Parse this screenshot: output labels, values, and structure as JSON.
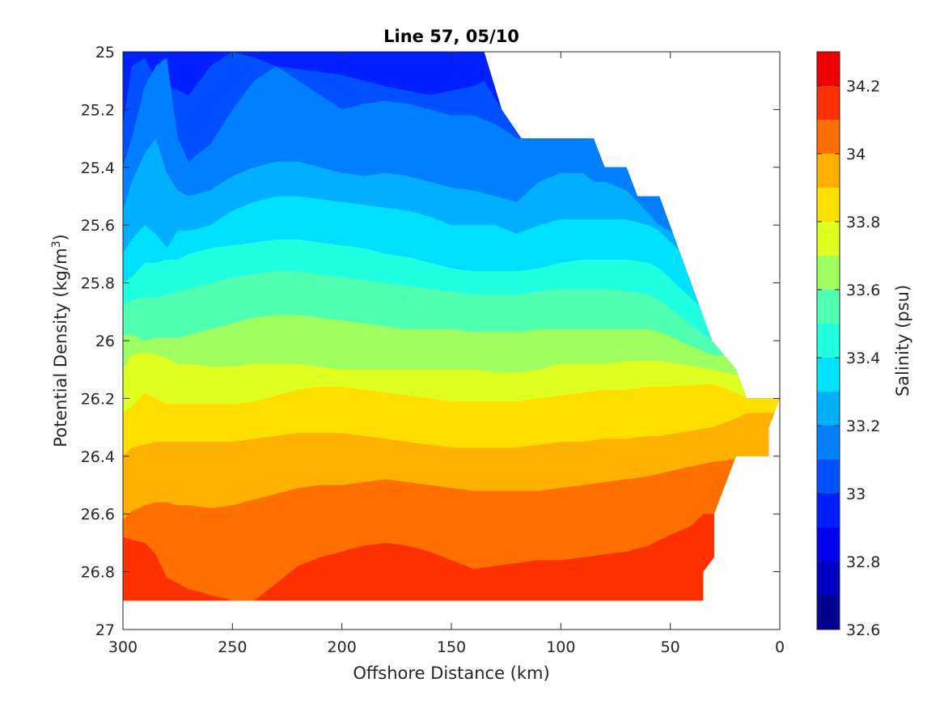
{
  "chart_data": {
    "type": "contourf",
    "title": "Line 57, 05/10",
    "xlabel": "Offshore Distance (km)",
    "ylabel_main": "Potential Density (kg/m",
    "ylabel_sup": "3",
    "ylabel_close": ")",
    "colorbar_label": "Salinity (psu)",
    "xlim": [
      300,
      0
    ],
    "ylim": [
      25,
      27
    ],
    "xticks": [
      "300",
      "250",
      "200",
      "150",
      "100",
      "50",
      "0"
    ],
    "yticks": [
      "25",
      "25.2",
      "25.4",
      "25.6",
      "25.8",
      "26",
      "26.2",
      "26.4",
      "26.6",
      "26.8",
      "27"
    ],
    "colorbar_range": [
      32.6,
      34.3
    ],
    "colorbar_ticks": [
      "32.6",
      "32.8",
      "33",
      "33.2",
      "33.4",
      "33.6",
      "33.8",
      "34",
      "34.2"
    ],
    "level_edges": [
      32.6,
      32.7,
      32.8,
      32.9,
      33.0,
      33.1,
      33.2,
      33.3,
      33.4,
      33.5,
      33.6,
      33.7,
      33.8,
      33.9,
      34.0,
      34.1,
      34.2,
      34.3
    ],
    "level_colors": [
      "#00008f",
      "#0000c0",
      "#0000ef",
      "#0020ff",
      "#0050ff",
      "#0080ff",
      "#00b0ff",
      "#00e0ff",
      "#20ffdf",
      "#50ffaf",
      "#a0ff60",
      "#dfff20",
      "#ffdf00",
      "#ffb000",
      "#ff7000",
      "#ff3000",
      "#ef0000",
      "#bf0000"
    ],
    "data_region": {
      "x": [
        300,
        300,
        135,
        127,
        118,
        85,
        80,
        70,
        65,
        55,
        31,
        20,
        15,
        0,
        5,
        5,
        20,
        30,
        30,
        35,
        35,
        300
      ],
      "y": [
        26.9,
        25,
        25,
        25.2,
        25.3,
        25.3,
        25.4,
        25.4,
        25.5,
        25.5,
        26.0,
        26.1,
        26.2,
        26.2,
        26.3,
        26.4,
        26.4,
        26.6,
        26.75,
        26.8,
        26.9,
        26.9
      ]
    },
    "bands": [
      {
        "salinity_low": 32.9,
        "x": [
          300,
          135,
          127,
          118,
          85,
          80,
          70,
          65,
          55,
          31,
          20,
          15,
          0
        ],
        "y_top": [
          25,
          25,
          25,
          25,
          25,
          25,
          25,
          25,
          25,
          25,
          25,
          25,
          25
        ]
      },
      {
        "salinity_low": 33.0,
        "x": [
          300,
          296,
          290,
          285,
          270,
          260,
          250,
          240,
          230,
          220,
          200,
          180,
          160,
          140,
          135,
          127,
          118,
          100,
          85,
          80,
          70,
          65,
          55,
          31,
          20,
          15,
          0
        ],
        "y_top": [
          25.25,
          25.05,
          25.02,
          25.1,
          25.15,
          25.05,
          25.0,
          25.02,
          25.05,
          25.06,
          25.08,
          25.12,
          25.15,
          25.12,
          25.1,
          25.2,
          25.3,
          25.3,
          25.3,
          25.4,
          25.4,
          25.5,
          25.5,
          25.5,
          25.5,
          25.5,
          25.5
        ]
      },
      {
        "salinity_low": 33.1,
        "x": [
          300,
          296,
          290,
          285,
          280,
          275,
          270,
          260,
          250,
          240,
          230,
          220,
          210,
          200,
          190,
          180,
          170,
          160,
          150,
          140,
          130,
          120,
          110,
          100,
          90,
          85,
          80,
          70,
          65,
          55,
          31,
          20,
          15,
          0
        ],
        "y_top": [
          25.4,
          25.3,
          25.12,
          25.05,
          25.02,
          25.3,
          25.38,
          25.32,
          25.2,
          25.1,
          25.05,
          25.1,
          25.15,
          25.2,
          25.18,
          25.17,
          25.18,
          25.2,
          25.22,
          25.22,
          25.25,
          25.3,
          25.3,
          25.3,
          25.3,
          25.3,
          25.4,
          25.4,
          25.5,
          25.5,
          25.6,
          25.6,
          25.6,
          25.6
        ]
      },
      {
        "salinity_low": 33.2,
        "x": [
          300,
          296,
          290,
          285,
          280,
          275,
          270,
          260,
          250,
          240,
          230,
          220,
          210,
          200,
          190,
          180,
          170,
          160,
          150,
          140,
          130,
          120,
          110,
          100,
          90,
          85,
          80,
          70,
          65,
          55,
          31,
          20,
          15,
          0
        ],
        "y_top": [
          25.55,
          25.45,
          25.35,
          25.3,
          25.42,
          25.48,
          25.5,
          25.48,
          25.43,
          25.4,
          25.38,
          25.38,
          25.4,
          25.42,
          25.43,
          25.42,
          25.43,
          25.45,
          25.47,
          25.48,
          25.5,
          25.52,
          25.45,
          25.42,
          25.42,
          25.45,
          25.45,
          25.48,
          25.52,
          25.6,
          25.7,
          25.7,
          25.7,
          25.7
        ]
      },
      {
        "salinity_low": 33.3,
        "x": [
          300,
          296,
          290,
          285,
          280,
          275,
          270,
          260,
          250,
          240,
          230,
          220,
          210,
          200,
          190,
          180,
          170,
          160,
          150,
          140,
          130,
          120,
          110,
          100,
          90,
          80,
          70,
          60,
          55,
          31,
          20,
          15,
          0
        ],
        "y_top": [
          25.7,
          25.65,
          25.6,
          25.63,
          25.68,
          25.62,
          25.62,
          25.6,
          25.55,
          25.52,
          25.5,
          25.5,
          25.51,
          25.52,
          25.53,
          25.54,
          25.55,
          25.57,
          25.6,
          25.6,
          25.6,
          25.63,
          25.6,
          25.58,
          25.58,
          25.58,
          25.58,
          25.6,
          25.62,
          25.8,
          25.8,
          25.8,
          25.8
        ]
      },
      {
        "salinity_low": 33.4,
        "x": [
          300,
          296,
          290,
          285,
          280,
          275,
          270,
          260,
          250,
          240,
          230,
          220,
          210,
          200,
          190,
          180,
          170,
          160,
          150,
          140,
          130,
          120,
          110,
          100,
          90,
          80,
          70,
          60,
          55,
          31,
          20,
          15,
          0
        ],
        "y_top": [
          25.8,
          25.78,
          25.73,
          25.73,
          25.72,
          25.72,
          25.7,
          25.68,
          25.67,
          25.66,
          25.65,
          25.65,
          25.66,
          25.67,
          25.68,
          25.7,
          25.71,
          25.73,
          25.75,
          25.76,
          25.76,
          25.76,
          25.75,
          25.73,
          25.72,
          25.72,
          25.72,
          25.73,
          25.75,
          25.92,
          25.92,
          25.92,
          25.92
        ]
      },
      {
        "salinity_low": 33.5,
        "x": [
          300,
          296,
          290,
          285,
          280,
          275,
          270,
          260,
          250,
          240,
          230,
          220,
          210,
          200,
          190,
          180,
          170,
          160,
          150,
          140,
          130,
          120,
          110,
          100,
          90,
          80,
          70,
          60,
          55,
          31,
          20,
          15,
          0
        ],
        "y_top": [
          25.88,
          25.86,
          25.85,
          25.85,
          25.84,
          25.83,
          25.82,
          25.8,
          25.78,
          25.77,
          25.76,
          25.76,
          25.77,
          25.78,
          25.79,
          25.8,
          25.81,
          25.82,
          25.83,
          25.84,
          25.84,
          25.84,
          25.83,
          25.82,
          25.82,
          25.82,
          25.83,
          25.84,
          25.86,
          26.0,
          26.0,
          26.0,
          26.0
        ]
      },
      {
        "salinity_low": 33.6,
        "x": [
          300,
          296,
          290,
          285,
          280,
          275,
          270,
          260,
          250,
          240,
          230,
          220,
          210,
          200,
          190,
          180,
          170,
          160,
          150,
          140,
          130,
          120,
          110,
          100,
          90,
          80,
          70,
          60,
          55,
          31,
          20,
          15,
          0
        ],
        "y_top": [
          25.98,
          25.98,
          26.0,
          25.99,
          25.99,
          25.99,
          25.98,
          25.96,
          25.94,
          25.92,
          25.91,
          25.91,
          25.92,
          25.93,
          25.94,
          25.95,
          25.96,
          25.96,
          25.96,
          25.97,
          25.97,
          25.97,
          25.96,
          25.96,
          25.96,
          25.96,
          25.96,
          25.96,
          25.97,
          26.05,
          26.05,
          26.05,
          26.05
        ]
      },
      {
        "salinity_low": 33.7,
        "x": [
          300,
          296,
          290,
          285,
          280,
          275,
          270,
          260,
          250,
          240,
          230,
          220,
          210,
          200,
          190,
          180,
          170,
          160,
          150,
          140,
          130,
          120,
          110,
          100,
          90,
          80,
          70,
          60,
          55,
          31,
          20,
          15,
          0
        ],
        "y_top": [
          26.1,
          26.05,
          26.04,
          26.05,
          26.06,
          26.08,
          26.08,
          26.09,
          26.09,
          26.08,
          26.08,
          26.08,
          26.09,
          26.1,
          26.1,
          26.1,
          26.1,
          26.1,
          26.1,
          26.1,
          26.11,
          26.11,
          26.1,
          26.08,
          26.08,
          26.08,
          26.07,
          26.07,
          26.07,
          26.1,
          26.12,
          26.12,
          26.12
        ]
      },
      {
        "salinity_low": 33.8,
        "x": [
          300,
          296,
          290,
          285,
          280,
          275,
          270,
          260,
          250,
          240,
          230,
          220,
          210,
          200,
          190,
          180,
          170,
          160,
          150,
          140,
          130,
          120,
          110,
          100,
          90,
          80,
          70,
          60,
          55,
          31,
          20,
          15,
          0
        ],
        "y_top": [
          26.25,
          26.23,
          26.18,
          26.2,
          26.22,
          26.22,
          26.22,
          26.22,
          26.22,
          26.21,
          26.19,
          26.17,
          26.16,
          26.16,
          26.17,
          26.18,
          26.19,
          26.2,
          26.21,
          26.21,
          26.21,
          26.21,
          26.2,
          26.19,
          26.18,
          26.17,
          26.17,
          26.16,
          26.16,
          26.15,
          26.18,
          26.2,
          26.2
        ]
      },
      {
        "salinity_low": 33.9,
        "x": [
          300,
          296,
          290,
          285,
          280,
          275,
          270,
          260,
          250,
          240,
          230,
          220,
          210,
          200,
          190,
          180,
          170,
          160,
          150,
          140,
          130,
          120,
          110,
          100,
          90,
          80,
          70,
          60,
          55,
          31,
          20,
          15,
          0
        ],
        "y_top": [
          26.4,
          26.37,
          26.36,
          26.35,
          26.35,
          26.35,
          26.35,
          26.35,
          26.35,
          26.34,
          26.33,
          26.32,
          26.32,
          26.32,
          26.33,
          26.34,
          26.35,
          26.36,
          26.37,
          26.37,
          26.37,
          26.37,
          26.36,
          26.35,
          26.35,
          26.34,
          26.34,
          26.33,
          26.33,
          26.3,
          26.27,
          26.25,
          26.25
        ]
      },
      {
        "salinity_low": 34.0,
        "x": [
          300,
          296,
          290,
          285,
          280,
          275,
          270,
          260,
          250,
          240,
          230,
          220,
          210,
          200,
          190,
          180,
          170,
          160,
          150,
          140,
          130,
          120,
          110,
          100,
          90,
          80,
          70,
          60,
          55,
          31,
          20,
          15,
          0
        ],
        "y_top": [
          26.62,
          26.59,
          26.57,
          26.56,
          26.56,
          26.57,
          26.57,
          26.58,
          26.57,
          26.55,
          26.53,
          26.51,
          26.5,
          26.5,
          26.49,
          26.48,
          26.49,
          26.5,
          26.51,
          26.52,
          26.52,
          26.52,
          26.52,
          26.51,
          26.5,
          26.49,
          26.48,
          26.47,
          26.46,
          26.42,
          26.41,
          26.41,
          26.41
        ]
      },
      {
        "salinity_low": 34.1,
        "x": [
          300,
          296,
          290,
          285,
          280,
          275,
          270,
          260,
          250,
          240,
          230,
          220,
          210,
          200,
          190,
          180,
          170,
          160,
          150,
          140,
          130,
          120,
          110,
          100,
          90,
          80,
          70,
          60,
          55,
          40,
          35,
          31,
          20,
          15,
          0
        ],
        "y_top": [
          26.68,
          26.69,
          26.7,
          26.74,
          26.82,
          26.84,
          26.86,
          26.88,
          26.9,
          26.9,
          26.84,
          26.78,
          26.75,
          26.73,
          26.71,
          26.7,
          26.71,
          26.73,
          26.76,
          26.79,
          26.78,
          26.77,
          26.76,
          26.76,
          26.75,
          26.74,
          26.73,
          26.71,
          26.69,
          26.64,
          26.6,
          26.6,
          26.6,
          26.6,
          26.6
        ]
      }
    ]
  }
}
